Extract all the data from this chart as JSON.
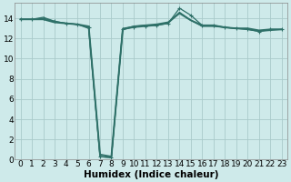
{
  "xlabel": "Humidex (Indice chaleur)",
  "x_values": [
    0,
    1,
    2,
    3,
    4,
    5,
    6,
    7,
    8,
    9,
    10,
    11,
    12,
    13,
    14,
    15,
    16,
    17,
    18,
    19,
    20,
    21,
    22,
    23
  ],
  "series": [
    {
      "y": [
        13.9,
        13.9,
        14.1,
        13.7,
        13.5,
        13.4,
        13.0,
        0.3,
        0.2,
        13.0,
        13.2,
        13.3,
        13.3,
        13.5,
        14.6,
        13.8,
        13.2,
        13.2,
        13.1,
        13.0,
        12.9,
        12.7,
        12.8,
        12.9
      ],
      "color": "#2e7068",
      "linewidth": 0.9,
      "marker": null
    },
    {
      "y": [
        13.9,
        13.9,
        14.0,
        13.7,
        13.5,
        13.4,
        13.1,
        0.3,
        0.2,
        12.9,
        13.1,
        13.2,
        13.3,
        13.5,
        15.0,
        14.3,
        13.3,
        13.3,
        13.1,
        13.0,
        12.9,
        12.7,
        12.9,
        12.9
      ],
      "color": "#2e7068",
      "linewidth": 0.9,
      "marker": "+"
    },
    {
      "y": [
        13.9,
        13.9,
        13.9,
        13.6,
        13.5,
        13.4,
        13.2,
        0.5,
        0.3,
        12.9,
        13.2,
        13.3,
        13.4,
        13.6,
        14.5,
        13.8,
        13.3,
        13.3,
        13.1,
        13.0,
        13.0,
        12.8,
        12.9,
        12.9
      ],
      "color": "#2e7068",
      "linewidth": 1.4,
      "marker": null
    }
  ],
  "xlim": [
    -0.5,
    23.5
  ],
  "ylim": [
    0,
    15.5
  ],
  "yticks": [
    0,
    2,
    4,
    6,
    8,
    10,
    12,
    14
  ],
  "xticks": [
    0,
    1,
    2,
    3,
    4,
    5,
    6,
    7,
    8,
    9,
    10,
    11,
    12,
    13,
    14,
    15,
    16,
    17,
    18,
    19,
    20,
    21,
    22,
    23
  ],
  "background_color": "#ceeaea",
  "grid_color": "#aacaca",
  "tick_fontsize": 6.5,
  "xlabel_fontsize": 7.5
}
